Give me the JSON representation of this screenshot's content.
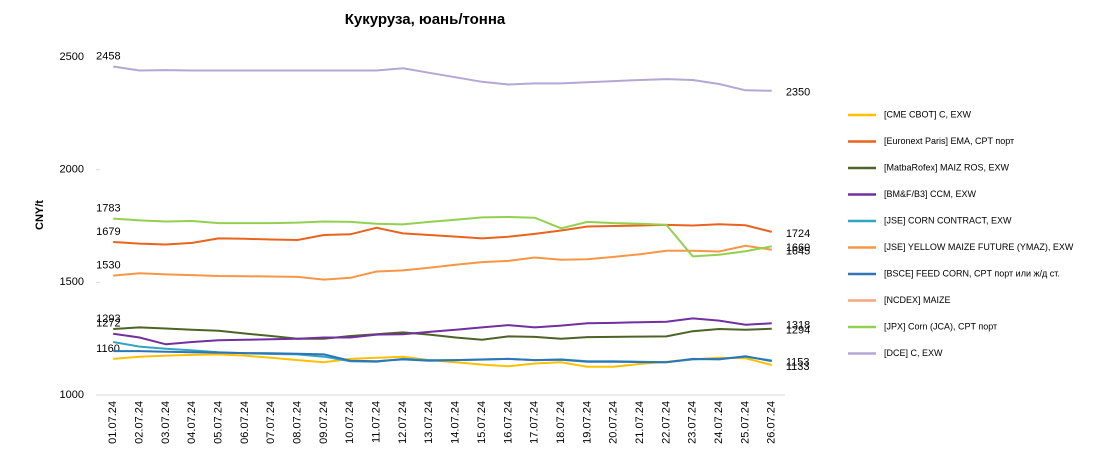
{
  "chart_data": {
    "type": "line",
    "title": "Кукуруза, юань/тонна",
    "y_label": "CNY/t",
    "categories": [
      "01.07.24",
      "02.07.24",
      "03.07.24",
      "04.07.24",
      "05.07.24",
      "06.07.24",
      "07.07.24",
      "08.07.24",
      "09.07.24",
      "10.07.24",
      "11.07.24",
      "12.07.24",
      "13.07.24",
      "14.07.24",
      "15.07.24",
      "16.07.24",
      "17.07.24",
      "18.07.24",
      "19.07.24",
      "20.07.24",
      "21.07.24",
      "22.07.24",
      "23.07.24",
      "24.07.24",
      "25.07.24",
      "26.07.24"
    ],
    "ylim": [
      1000,
      2500
    ],
    "yticks": [
      1000,
      1500,
      2000,
      2500
    ],
    "legend": "right",
    "series": [
      {
        "name": "[CME CBOT] C, EXW",
        "color": "#ffc000",
        "data_labels": [
          0,
          25
        ],
        "values": [
          1160,
          1170,
          1175,
          1178,
          1180,
          1175,
          1165,
          1155,
          1145,
          1160,
          1165,
          1170,
          1155,
          1145,
          1135,
          1128,
          1140,
          1145,
          1125,
          1125,
          1138,
          1148,
          1158,
          1165,
          1163,
          1133
        ]
      },
      {
        "name": "[Euronext Paris] EMA, CPT порт",
        "color": "#e8641e",
        "data_labels": [
          0,
          25
        ],
        "values": [
          1679,
          1672,
          1668,
          1675,
          1695,
          1693,
          1690,
          1688,
          1710,
          1713,
          1742,
          1717,
          1710,
          1703,
          1695,
          1702,
          1715,
          1730,
          1748,
          1750,
          1752,
          1755,
          1752,
          1758,
          1753,
          1724
        ]
      },
      {
        "name": "[MatbaRofex] MAIZ ROS, EXW",
        "color": "#4f6228",
        "data_labels": [
          0,
          25
        ],
        "values": [
          1293,
          1300,
          1295,
          1290,
          1285,
          1273,
          1262,
          1250,
          1250,
          1262,
          1270,
          1278,
          1268,
          1255,
          1245,
          1260,
          1258,
          1250,
          1257,
          1258,
          1259,
          1260,
          1283,
          1293,
          1290,
          1294
        ]
      },
      {
        "name": "[BM&F/B3] CCM, EXW",
        "color": "#7030a0",
        "data_labels": [
          0,
          25
        ],
        "values": [
          1272,
          1255,
          1225,
          1235,
          1243,
          1245,
          1247,
          1250,
          1255,
          1255,
          1268,
          1270,
          1280,
          1290,
          1300,
          1310,
          1300,
          1308,
          1318,
          1320,
          1323,
          1325,
          1340,
          1330,
          1312,
          1318
        ]
      },
      {
        "name": "[JSE] CORN CONTRACT, EXW",
        "color": "#31a5c4",
        "data_labels": [
          25
        ],
        "values": [
          1235,
          1215,
          1205,
          1198,
          1190,
          1185,
          1182,
          1180,
          1170,
          1150,
          1148,
          1160,
          1155,
          1155,
          1158,
          1160,
          1155,
          1158,
          1150,
          1150,
          1148,
          1145,
          1158,
          1160,
          1170,
          1153
        ]
      },
      {
        "name": "[JSE] YELLOW MAIZE FUTURE (YMAZ), EXW",
        "color": "#f79646",
        "data_labels": [
          0,
          25
        ],
        "values": [
          1530,
          1540,
          1535,
          1532,
          1528,
          1527,
          1526,
          1524,
          1512,
          1520,
          1548,
          1553,
          1565,
          1578,
          1590,
          1595,
          1610,
          1600,
          1602,
          1613,
          1625,
          1640,
          1640,
          1637,
          1662,
          1645
        ]
      },
      {
        "name": "[BSCE] FEED CORN, CPT порт или ж/д ст.",
        "color": "#2e75b6",
        "data_labels": [],
        "values": [
          1195,
          1195,
          1192,
          1190,
          1188,
          1186,
          1185,
          1183,
          1180,
          1152,
          1150,
          1158,
          1152,
          1155,
          1157,
          1160,
          1155,
          1156,
          1148,
          1148,
          1146,
          1145,
          1160,
          1158,
          1172,
          1150
        ]
      },
      {
        "name": "[NCDEX] MAIZE",
        "color": "#f4a582",
        "data_labels": [],
        "values": [
          null,
          null,
          null,
          null,
          null,
          null,
          null,
          null,
          null,
          null,
          null,
          null,
          null,
          null,
          null,
          null,
          null,
          null,
          null,
          null,
          null,
          null,
          null,
          null,
          null,
          null
        ]
      },
      {
        "name": "[JPX] Corn (JCA), CPT порт",
        "color": "#92d050",
        "data_labels": [
          0,
          25
        ],
        "values": [
          1783,
          1775,
          1770,
          1772,
          1763,
          1763,
          1763,
          1765,
          1770,
          1768,
          1760,
          1757,
          1768,
          1778,
          1788,
          1790,
          1787,
          1740,
          1768,
          1763,
          1760,
          1755,
          1615,
          1622,
          1638,
          1660
        ]
      },
      {
        "name": "[DCE] C, EXW",
        "color": "#b4a7d6",
        "data_labels": [
          0,
          25
        ],
        "values": [
          2458,
          2440,
          2442,
          2440,
          2440,
          2440,
          2440,
          2440,
          2440,
          2440,
          2440,
          2450,
          2430,
          2410,
          2390,
          2378,
          2383,
          2383,
          2388,
          2393,
          2398,
          2402,
          2398,
          2380,
          2352,
          2350
        ]
      }
    ]
  }
}
